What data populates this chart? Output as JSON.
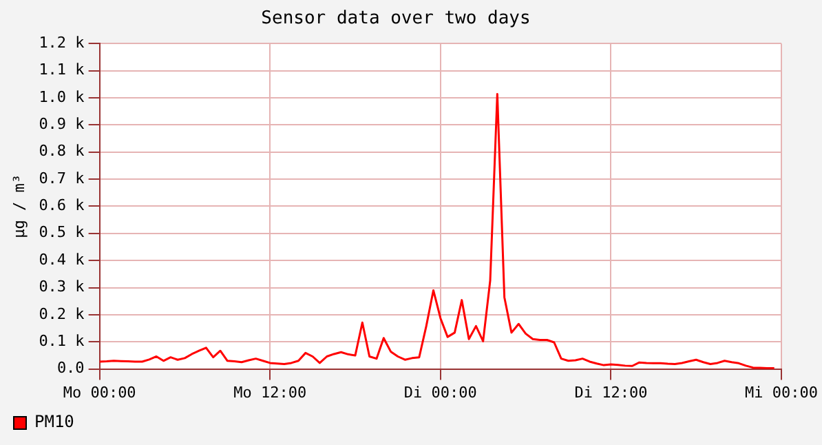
{
  "chart_data": {
    "type": "line",
    "title": "Sensor data over two days",
    "ylabel": "µg / m³",
    "categories": [
      "Mo 00:00",
      null,
      null,
      null,
      null,
      null,
      null,
      null,
      null,
      null,
      null,
      null,
      null,
      null,
      null,
      null,
      null,
      null,
      null,
      null,
      null,
      null,
      null,
      null,
      "Mo 12:00",
      null,
      null,
      null,
      null,
      null,
      null,
      null,
      null,
      null,
      null,
      null,
      null,
      null,
      null,
      null,
      null,
      null,
      null,
      null,
      null,
      null,
      null,
      null,
      "Di 00:00",
      null,
      null,
      null,
      null,
      null,
      null,
      null,
      null,
      null,
      null,
      null,
      null,
      null,
      null,
      null,
      null,
      null,
      null,
      null,
      null,
      null,
      null,
      null,
      "Di 12:00",
      null,
      null,
      null,
      null,
      null,
      null,
      null,
      null,
      null,
      null,
      null,
      null,
      null,
      null,
      null,
      null,
      null,
      null,
      null,
      null,
      null,
      null,
      null,
      "Mi 00:00"
    ],
    "series": [
      {
        "name": "PM10",
        "color": "#ff0000",
        "values": [
          27,
          28,
          30,
          29,
          28,
          27,
          27,
          35,
          46,
          30,
          43,
          34,
          40,
          55,
          67,
          78,
          43,
          67,
          30,
          28,
          25,
          32,
          38,
          30,
          22,
          20,
          18,
          22,
          30,
          59,
          46,
          22,
          46,
          55,
          62,
          54,
          50,
          171,
          46,
          38,
          114,
          64,
          46,
          34,
          40,
          43,
          158,
          290,
          187,
          118,
          134,
          254,
          110,
          158,
          102,
          326,
          1014,
          264,
          134,
          166,
          130,
          110,
          107,
          107,
          98,
          38,
          30,
          32,
          38,
          27,
          20,
          14,
          17,
          15,
          12,
          11,
          24,
          22,
          21,
          21,
          19,
          18,
          22,
          28,
          34,
          25,
          18,
          22,
          30,
          25,
          21,
          12,
          5,
          4,
          3,
          3,
          null
        ]
      }
    ],
    "ylim": [
      0,
      1200
    ],
    "yticks": [
      {
        "value": 0,
        "label": "0.0"
      },
      {
        "value": 100,
        "label": "0.1 k"
      },
      {
        "value": 200,
        "label": "0.2 k"
      },
      {
        "value": 300,
        "label": "0.3 k"
      },
      {
        "value": 400,
        "label": "0.4 k"
      },
      {
        "value": 500,
        "label": "0.5 k"
      },
      {
        "value": 600,
        "label": "0.6 k"
      },
      {
        "value": 700,
        "label": "0.7 k"
      },
      {
        "value": 800,
        "label": "0.8 k"
      },
      {
        "value": 900,
        "label": "0.9 k"
      },
      {
        "value": 1000,
        "label": "1.0 k"
      },
      {
        "value": 1100,
        "label": "1.1 k"
      },
      {
        "value": 1200,
        "label": "1.2 k"
      }
    ],
    "grid": true,
    "legend": "bottom",
    "marker": "none",
    "line_style": "solid"
  }
}
